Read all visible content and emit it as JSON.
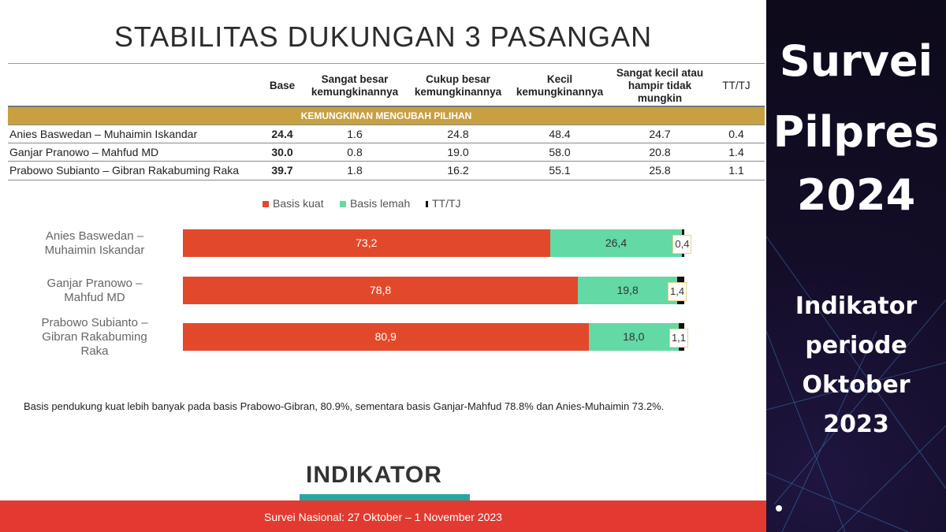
{
  "slide": {
    "title": "STABILITAS DUKUNGAN 3 PASANGAN",
    "table": {
      "headers": [
        "Base",
        "Sangat besar kemungkinannya",
        "Cukup besar kemungkinannya",
        "Kecil kemungkinannya",
        "Sangat kecil atau hampir tidak mungkin",
        "TT/TJ"
      ],
      "band_label": "KEMUNGKINAN MENGUBAH PILIHAN",
      "rows": [
        {
          "name": "Anies Baswedan – Muhaimin Iskandar",
          "values": [
            "24.4",
            "1.6",
            "24.8",
            "48.4",
            "24.7",
            "0.4"
          ]
        },
        {
          "name": "Ganjar Pranowo – Mahfud MD",
          "values": [
            "30.0",
            "0.8",
            "19.0",
            "58.0",
            "20.8",
            "1.4"
          ]
        },
        {
          "name": "Prabowo Subianto – Gibran Rakabuming Raka",
          "values": [
            "39.7",
            "1.8",
            "16.2",
            "55.1",
            "25.8",
            "1.1"
          ]
        }
      ]
    },
    "note": "Basis pendukung kuat lebih banyak pada basis Prabowo-Gibran, 80.9%, sementara basis Ganjar-Mahfud 78.8% dan Anies-Muhaimin 73.2%.",
    "logo_text": "INDIKATOR",
    "footer": "Survei Nasional: 27 Oktober – 1 November 2023"
  },
  "chart_data": {
    "type": "bar",
    "orientation": "horizontal",
    "stacked": true,
    "categories": [
      "Anies Baswedan – Muhaimin Iskandar",
      "Ganjar Pranowo – Mahfud MD",
      "Prabowo Subianto – Gibran Rakabuming Raka"
    ],
    "category_lines": [
      [
        "Anies Baswedan –",
        "Muhaimin Iskandar"
      ],
      [
        "Ganjar Pranowo –",
        "Mahfud MD"
      ],
      [
        "Prabowo Subianto –",
        "Gibran Rakabuming",
        "Raka"
      ]
    ],
    "series": [
      {
        "name": "Basis kuat",
        "color": "#e2492b",
        "values": [
          73.2,
          78.8,
          80.9
        ],
        "labels": [
          "73,2",
          "78,8",
          "80,9"
        ]
      },
      {
        "name": "Basis lemah",
        "color": "#63d9a6",
        "values": [
          26.4,
          19.8,
          18.0
        ],
        "labels": [
          "26,4",
          "19,8",
          "18,0"
        ]
      },
      {
        "name": "TT/TJ",
        "color": "#111111",
        "values": [
          0.4,
          1.4,
          1.1
        ],
        "labels": [
          "0,4",
          "1,4",
          "1,1"
        ]
      }
    ],
    "xlim": [
      0,
      100
    ],
    "legend_position": "top"
  },
  "side_panel": {
    "title_lines": [
      "Survei",
      "Pilpres",
      "2024"
    ],
    "subtitle_lines": [
      "Indikator",
      "periode",
      "Oktober",
      "2023"
    ]
  }
}
